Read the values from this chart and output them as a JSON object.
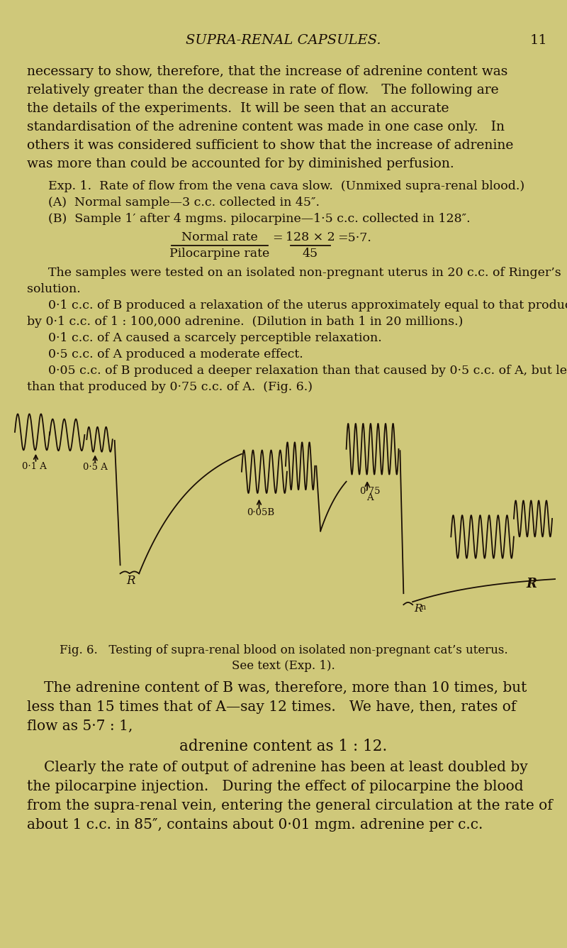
{
  "page_color": "#cfc87a",
  "text_color": "#1a0e05",
  "header_title": "SUPRA-RENAL CAPSULES.",
  "header_page": "11",
  "body_lines": [
    "necessary to show, therefore, that the increase of adrenine content was",
    "relatively greater than the decrease in rate of flow.   The following are",
    "the details of the experiments.  It will be seen that an accurate",
    "standardisation of the adrenine content was made in one case only.   In",
    "others it was considered sufficient to show that the increase of adrenine",
    "was more than could be accounted for by diminished perfusion."
  ],
  "fig_caption_line1": "Fig. 6.   Testing of supra-renal blood on isolated non-pregnant cat’s uterus.",
  "fig_caption_line2": "See text (Exp. 1).",
  "bottom_para1_lines": [
    "The adrenine content of B was, therefore, more than 10 times, but",
    "less than 15 times that of A—say 12 times.   We have, then, rates of",
    "flow as 5·7 : 1,"
  ],
  "center_line": "adrenine content as 1 : 12.",
  "bottom_para2_lines": [
    "Clearly the rate of output of adrenine has been at least doubled by",
    "the pilocarpine injection.   During the effect of pilocarpine the blood",
    "from the supra-renal vein, entering the general circulation at the rate of",
    "about 1 c.c. in 85″, contains about 0·01 mgm. adrenine per c.c."
  ]
}
